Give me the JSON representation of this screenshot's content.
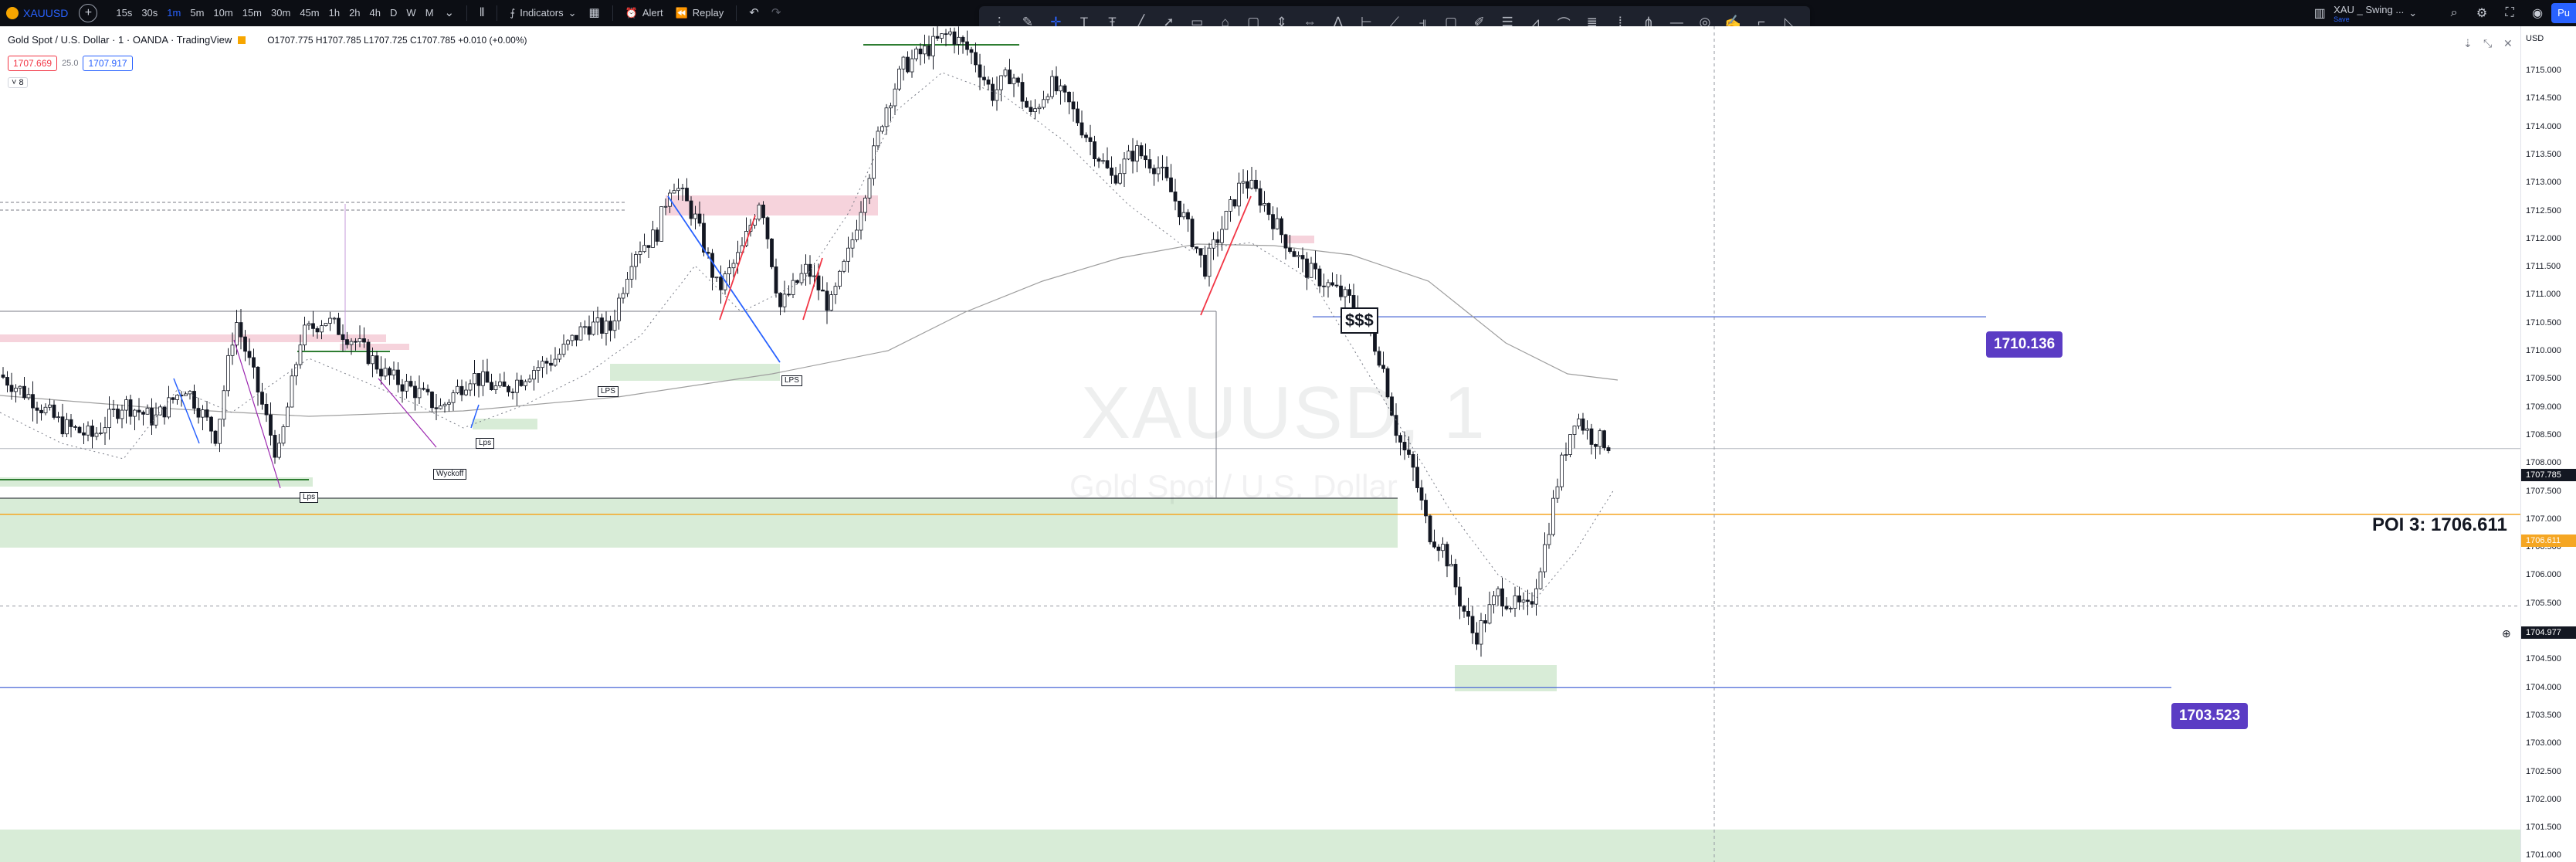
{
  "topbar": {
    "symbol": "XAUUSD",
    "intervals": [
      "15s",
      "30s",
      "1m",
      "5m",
      "10m",
      "15m",
      "30m",
      "45m",
      "1h",
      "2h",
      "4h",
      "D",
      "W",
      "M"
    ],
    "active_interval": "1m",
    "indicators_label": "Indicators",
    "alert_label": "Alert",
    "replay_label": "Replay",
    "layout_name": "XAU _ Swing ...",
    "layout_sub": "Save",
    "publish_label": "Pu"
  },
  "legend": {
    "title": "Gold Spot / U.S. Dollar · 1 · OANDA · TradingView",
    "ohlc": "O1707.775 H1707.785 L1707.725 C1707.785 +0.010 (+0.00%)",
    "bid": "1707.669",
    "spread": "25.0",
    "ask": "1707.917",
    "collapse": "8"
  },
  "watermark": {
    "symbol": "XAUUSD, 1",
    "description": "Gold Spot / U.S. Dollar"
  },
  "annotations": {
    "dollars": "$$$",
    "price_1": "1710.136",
    "price_2": "1703.523",
    "poi": "POI 3: 1706.611",
    "lps_labels": [
      "LPS",
      "LPS",
      "Lps",
      "Lps",
      "Wyckoff"
    ]
  },
  "axis": {
    "currency": "USD",
    "ticks": [
      "1715.000",
      "1714.500",
      "1714.000",
      "1713.500",
      "1713.000",
      "1712.500",
      "1712.000",
      "1711.500",
      "1711.000",
      "1710.500",
      "1710.000",
      "1709.500",
      "1709.000",
      "1708.500",
      "1708.000",
      "1707.500",
      "1707.000",
      "1706.500",
      "1706.000",
      "1705.500",
      "1705.000",
      "1704.500",
      "1704.000",
      "1703.500",
      "1703.000",
      "1702.500",
      "1702.000",
      "1701.500",
      "1701.000"
    ],
    "last_price": "1707.785",
    "poi_price": "1706.611",
    "crosshair_price": "1704.977"
  },
  "colors": {
    "up": "#131722",
    "down": "#131722",
    "demand_zone": "#d8ecd7",
    "supply_zone": "#f6d3dc",
    "pill": "#5b3cc4",
    "poi_line": "#f5a623",
    "blue_line": "#4a67d6"
  },
  "chart_data": {
    "type": "candlestick",
    "ylim": [
      1701.0,
      1715.3
    ],
    "levels": [
      {
        "name": "1710.136",
        "value": 1710.136
      },
      {
        "name": "1703.523",
        "value": 1703.523
      },
      {
        "name": "POI 3: 1706.611",
        "value": 1706.611
      },
      {
        "name": "last",
        "value": 1707.785
      }
    ]
  }
}
